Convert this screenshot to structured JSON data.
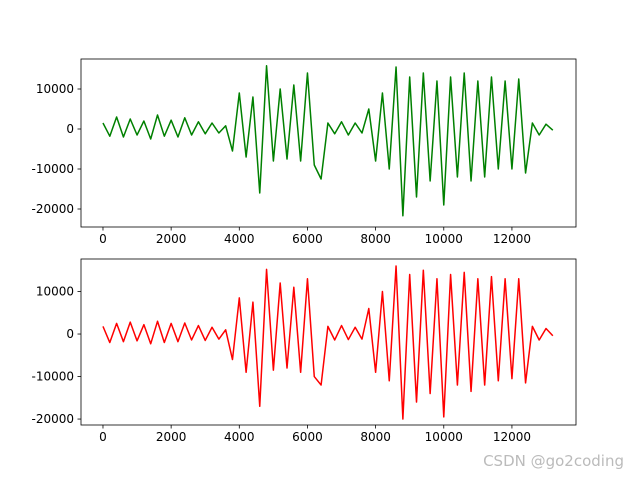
{
  "chart_data": [
    {
      "type": "line",
      "x": [
        0,
        200,
        400,
        600,
        800,
        1000,
        1200,
        1400,
        1600,
        1800,
        2000,
        2200,
        2400,
        2600,
        2800,
        3000,
        3200,
        3400,
        3600,
        3800,
        4000,
        4200,
        4400,
        4600,
        4800,
        5000,
        5200,
        5400,
        5600,
        5800,
        6000,
        6200,
        6400,
        6600,
        6800,
        7000,
        7200,
        7400,
        7600,
        7800,
        8000,
        8200,
        8400,
        8600,
        8800,
        9000,
        9200,
        9400,
        9600,
        9800,
        10000,
        10200,
        10400,
        10600,
        10800,
        11000,
        11200,
        11400,
        11600,
        11800,
        12000,
        12200,
        12400,
        12600,
        12800,
        13000,
        13200
      ],
      "series": [
        {
          "color": "#008000",
          "values": [
            1500,
            -1800,
            3000,
            -2000,
            2500,
            -1500,
            2000,
            -2500,
            3500,
            -1800,
            2200,
            -2000,
            2800,
            -1500,
            1800,
            -1200,
            1500,
            -1000,
            800,
            -5500,
            9000,
            -7000,
            8000,
            -16000,
            15800,
            -8000,
            10000,
            -7500,
            11000,
            -8000,
            14000,
            -9000,
            -12500,
            1500,
            -1200,
            1800,
            -1500,
            1500,
            -1000,
            5000,
            -8000,
            9000,
            -10000,
            15500,
            -21700,
            13000,
            -17000,
            14000,
            -13000,
            12000,
            -19000,
            13000,
            -12000,
            14000,
            -13000,
            12000,
            -12000,
            13000,
            -10000,
            12000,
            -10000,
            12500,
            -11000,
            1500,
            -1500,
            1200,
            -300
          ]
        }
      ],
      "xlim": [
        -645,
        13880
      ],
      "ylim": [
        -24500,
        17500
      ],
      "xticks": [
        0,
        2000,
        4000,
        6000,
        8000,
        10000,
        12000
      ],
      "yticks": [
        -20000,
        -10000,
        0,
        10000
      ]
    },
    {
      "type": "line",
      "x": [
        0,
        200,
        400,
        600,
        800,
        1000,
        1200,
        1400,
        1600,
        1800,
        2000,
        2200,
        2400,
        2600,
        2800,
        3000,
        3200,
        3400,
        3600,
        3800,
        4000,
        4200,
        4400,
        4600,
        4800,
        5000,
        5200,
        5400,
        5600,
        5800,
        6000,
        6200,
        6400,
        6600,
        6800,
        7000,
        7200,
        7400,
        7600,
        7800,
        8000,
        8200,
        8400,
        8600,
        8800,
        9000,
        9200,
        9400,
        9600,
        9800,
        10000,
        10200,
        10400,
        10600,
        10800,
        11000,
        11200,
        11400,
        11600,
        11800,
        12000,
        12200,
        12400,
        12600,
        12800,
        13000,
        13200
      ],
      "series": [
        {
          "color": "#ff0000",
          "values": [
            1800,
            -2000,
            2500,
            -1800,
            2800,
            -1600,
            2200,
            -2300,
            3000,
            -2000,
            2500,
            -1800,
            2600,
            -1400,
            2000,
            -1500,
            1600,
            -1200,
            1000,
            -6000,
            8500,
            -9000,
            7500,
            -17000,
            15200,
            -8500,
            12000,
            -8000,
            11000,
            -9000,
            13000,
            -10000,
            -12000,
            1800,
            -1400,
            2000,
            -1300,
            1600,
            -1200,
            6000,
            -9000,
            10000,
            -11000,
            16000,
            -20000,
            14000,
            -16000,
            15000,
            -14000,
            13000,
            -19500,
            14000,
            -12000,
            14500,
            -13500,
            13000,
            -12000,
            13500,
            -11000,
            13000,
            -10500,
            13000,
            -11500,
            1800,
            -1400,
            1300,
            -400
          ]
        }
      ],
      "xlim": [
        -645,
        13880
      ],
      "ylim": [
        -21400,
        17650
      ],
      "xticks": [
        0,
        2000,
        4000,
        6000,
        8000,
        10000,
        12000
      ],
      "yticks": [
        -20000,
        -10000,
        0,
        10000
      ]
    }
  ],
  "watermark": "CSDN @go2coding"
}
